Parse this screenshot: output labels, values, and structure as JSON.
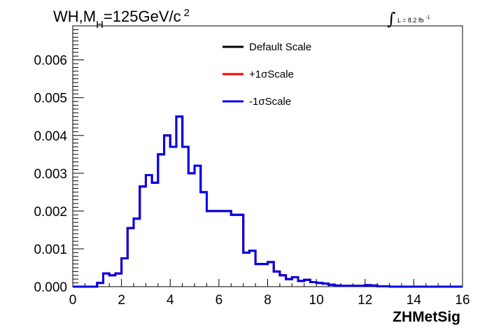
{
  "chart_data": {
    "type": "line",
    "title": {
      "main": "WH,M",
      "subscript": "H",
      "rest": "=125GeV/c",
      "superscript": "2"
    },
    "lumi": {
      "integral": "∫",
      "text": "L = 8.2 fb",
      "superscript": "-1"
    },
    "xlabel": "ZHMetSig",
    "ylabel": "",
    "xlim": [
      0,
      16
    ],
    "ylim": [
      0,
      0.0069
    ],
    "x_ticks": [
      "0",
      "2",
      "4",
      "6",
      "8",
      "10",
      "12",
      "14",
      "16"
    ],
    "y_ticks": [
      "0.000",
      "0.001",
      "0.002",
      "0.003",
      "0.004",
      "0.005",
      "0.006"
    ],
    "bin_edges": [
      0,
      0.5,
      1,
      1.25,
      1.5,
      1.75,
      2,
      2.25,
      2.5,
      2.75,
      3,
      3.25,
      3.5,
      3.75,
      4,
      4.25,
      4.5,
      4.75,
      5,
      5.25,
      5.5,
      5.75,
      6,
      6.5,
      7,
      7.25,
      7.5,
      7.75,
      8,
      8.25,
      8.5,
      8.75,
      9,
      9.25,
      9.5,
      9.75,
      10,
      10.25,
      10.5,
      10.75,
      11,
      12,
      12.25,
      12.5,
      13,
      16
    ],
    "series": [
      {
        "name": "Default Scale",
        "color": "#000000",
        "values": [
          0,
          0,
          0.0001,
          0.00035,
          0.0003,
          0.00035,
          0.00075,
          0.00155,
          0.0018,
          0.00265,
          0.00295,
          0.00275,
          0.0035,
          0.004,
          0.0037,
          0.0045,
          0.0037,
          0.003,
          0.0032,
          0.0025,
          0.002,
          0.002,
          0.002,
          0.0019,
          0.0009,
          0.00095,
          0.0006,
          0.0006,
          0.00065,
          0.0004,
          0.0003,
          0.0002,
          0.00025,
          0.00015,
          0.00018,
          0.00012,
          0.0001,
          8e-05,
          5e-05,
          3e-05,
          2e-05,
          4e-05,
          3e-05,
          1e-05,
          0
        ]
      },
      {
        "name": "+1σScale",
        "color": "#ff0000",
        "values": [
          0,
          0,
          0.0001,
          0.00035,
          0.0003,
          0.00035,
          0.00075,
          0.00155,
          0.0018,
          0.00265,
          0.00295,
          0.00275,
          0.0035,
          0.004,
          0.0037,
          0.0045,
          0.0037,
          0.003,
          0.0032,
          0.0025,
          0.002,
          0.002,
          0.002,
          0.0019,
          0.0009,
          0.00095,
          0.0006,
          0.0006,
          0.00065,
          0.0004,
          0.0003,
          0.0002,
          0.00025,
          0.00015,
          0.00018,
          0.00012,
          0.0001,
          8e-05,
          5e-05,
          3e-05,
          2e-05,
          4e-05,
          3e-05,
          1e-05,
          0
        ]
      },
      {
        "name": "-1σScale",
        "color": "#0000ee",
        "values": [
          0,
          0,
          0.0001,
          0.00035,
          0.0003,
          0.00035,
          0.00075,
          0.00155,
          0.0018,
          0.00265,
          0.00295,
          0.00275,
          0.0035,
          0.004,
          0.0037,
          0.0045,
          0.0037,
          0.003,
          0.0032,
          0.0025,
          0.002,
          0.002,
          0.002,
          0.0019,
          0.0009,
          0.00095,
          0.0006,
          0.0006,
          0.00065,
          0.0004,
          0.0003,
          0.0002,
          0.00025,
          0.00015,
          0.00018,
          0.00012,
          0.0001,
          8e-05,
          5e-05,
          3e-05,
          2e-05,
          4e-05,
          3e-05,
          1e-05,
          0
        ]
      }
    ],
    "legend_position": "top-right"
  }
}
